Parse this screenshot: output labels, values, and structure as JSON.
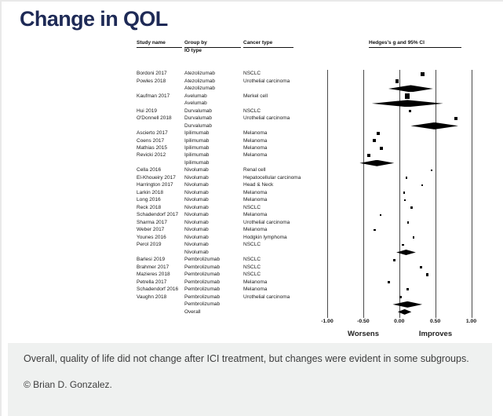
{
  "title": "Change in QOL",
  "table": {
    "headers": {
      "study": "Study name",
      "group_line1": "Group by",
      "group_line2": "IO type",
      "cancer": "Cancer type",
      "plot": "Hedges's g and 95% CI"
    }
  },
  "footer": {
    "summary": "Overall, quality of life did not change after ICI treatment, but changes were evident in some subgroups.",
    "credit": "© Brian D. Gonzalez."
  },
  "colors": {
    "title": "#1e2a56",
    "marker": "#000000",
    "gridline": "#4a4a4a",
    "footer_bg": "#eff1f0"
  },
  "chart_data": {
    "type": "forest",
    "title": "Change in QOL",
    "effect_label": "Hedges's g and 95% CI",
    "x_axis": {
      "xlim": [
        -1.0,
        1.0
      ],
      "ticks": [
        -1.0,
        -0.5,
        0.0,
        0.5,
        1.0
      ],
      "tick_labels": [
        "-1.00",
        "-0.50",
        "0.00",
        "0.50",
        "1.00"
      ],
      "left_annotation": "Worsens",
      "right_annotation": "Improves",
      "grid": true
    },
    "rows": [
      {
        "study": "Bordoni 2017",
        "group": "Atezolizumab",
        "cancer": "NSCLC",
        "marker": "square",
        "g": 0.32,
        "size": 5
      },
      {
        "study": "Powles 2018",
        "group": "Atezolizumab",
        "cancer": "Urothelial carcinoma",
        "marker": "square",
        "g": -0.03,
        "size": 4.5
      },
      {
        "study": "",
        "group": "Atezolizumab",
        "cancer": "",
        "marker": "diamond",
        "g": 0.16,
        "ci": [
          -0.15,
          0.47
        ],
        "size": 9
      },
      {
        "study": "Kaufman 2017",
        "group": "Avelumab",
        "cancer": "Merkel cell",
        "marker": "square",
        "g": 0.11,
        "size": 6.5
      },
      {
        "study": "",
        "group": "Avelumab",
        "cancer": "",
        "marker": "diamond",
        "g": 0.12,
        "ci": [
          -0.38,
          0.61
        ],
        "size": 9
      },
      {
        "study": "Hui 2019",
        "group": "Durvalumab",
        "cancer": "NSCLC",
        "marker": "square",
        "g": 0.15,
        "size": 3.5
      },
      {
        "study": "O'Donnell 2018",
        "group": "Durvalumab",
        "cancer": "Urothelial carcinoma",
        "marker": "square",
        "g": 0.79,
        "size": 4.5
      },
      {
        "study": "",
        "group": "Durvalumab",
        "cancer": "",
        "marker": "diamond",
        "g": 0.49,
        "ci": [
          0.16,
          0.82
        ],
        "size": 9
      },
      {
        "study": "Ascierto 2017",
        "group": "Ipilimumab",
        "cancer": "Melanoma",
        "marker": "square",
        "g": -0.29,
        "size": 3.5
      },
      {
        "study": "Coens 2017",
        "group": "Ipilimumab",
        "cancer": "Melanoma",
        "marker": "square",
        "g": -0.35,
        "size": 4
      },
      {
        "study": "Mathias 2015",
        "group": "Ipilimumab",
        "cancer": "Melanoma",
        "marker": "square",
        "g": -0.25,
        "size": 3.5
      },
      {
        "study": "Revicki 2012",
        "group": "Ipilimumab",
        "cancer": "Melanoma",
        "marker": "square",
        "g": -0.42,
        "size": 4
      },
      {
        "study": "",
        "group": "Ipilimumab",
        "cancer": "",
        "marker": "diamond",
        "g": -0.31,
        "ci": [
          -0.55,
          -0.07
        ],
        "size": 8
      },
      {
        "study": "Cella 2016",
        "group": "Nivolumab",
        "cancer": "Renal cell",
        "marker": "square",
        "g": 0.45,
        "size": 2.5
      },
      {
        "study": "El-Khoueiry 2017",
        "group": "Nivolumab",
        "cancer": "Hepatocellular carcinoma",
        "marker": "square",
        "g": 0.1,
        "size": 2.5
      },
      {
        "study": "Harrington 2017",
        "group": "Nivolumab",
        "cancer": "Head & Neck",
        "marker": "square",
        "g": 0.32,
        "size": 2.5
      },
      {
        "study": "Larkin 2018",
        "group": "Nivolumab",
        "cancer": "Melanoma",
        "marker": "square",
        "g": 0.07,
        "size": 2.5
      },
      {
        "study": "Long 2016",
        "group": "Nivolumab",
        "cancer": "Melanoma",
        "marker": "square",
        "g": 0.08,
        "size": 2.5
      },
      {
        "study": "Reck 2018",
        "group": "Nivolumab",
        "cancer": "NSCLC",
        "marker": "square",
        "g": 0.17,
        "size": 2.5
      },
      {
        "study": "Schadendorf 2017",
        "group": "Nivolumab",
        "cancer": "Melanoma",
        "marker": "square",
        "g": -0.26,
        "size": 2.5
      },
      {
        "study": "Sharma 2017",
        "group": "Nivolumab",
        "cancer": "Urothelial carcinoma",
        "marker": "square",
        "g": 0.12,
        "size": 2.5
      },
      {
        "study": "Weber 2017",
        "group": "Nivolumab",
        "cancer": "Melanoma",
        "marker": "square",
        "g": -0.34,
        "size": 2.5
      },
      {
        "study": "Younes 2016",
        "group": "Nivolumab",
        "cancer": "Hodgkin lymphoma",
        "marker": "square",
        "g": 0.2,
        "size": 2.5
      },
      {
        "study": "Perol 2019",
        "group": "Nivolumab",
        "cancer": "NSCLC",
        "marker": "square",
        "g": 0.05,
        "size": 2.5
      },
      {
        "study": "",
        "group": "Nivolumab",
        "cancer": "",
        "marker": "diamond",
        "g": 0.1,
        "ci": [
          -0.04,
          0.23
        ],
        "size": 7
      },
      {
        "study": "Barlesi 2019",
        "group": "Pembrolizumab",
        "cancer": "NSCLC",
        "marker": "square",
        "g": -0.07,
        "size": 3
      },
      {
        "study": "Brahmer 2017",
        "group": "Pembrolizumab",
        "cancer": "NSCLC",
        "marker": "square",
        "g": 0.3,
        "size": 3.5
      },
      {
        "study": "Mazieres 2018",
        "group": "Pembrolizumab",
        "cancer": "NSCLC",
        "marker": "square",
        "g": 0.39,
        "size": 3.5
      },
      {
        "study": "Petrella 2017",
        "group": "Pembrolizumab",
        "cancer": "Melanoma",
        "marker": "square",
        "g": -0.14,
        "size": 3
      },
      {
        "study": "Schadendorf 2016",
        "group": "Pembrolizumab",
        "cancer": "Melanoma",
        "marker": "square",
        "g": 0.12,
        "size": 3
      },
      {
        "study": "Vaughn 2018",
        "group": "Pembrolizumab",
        "cancer": "Urothelial carcinoma",
        "marker": "square",
        "g": 0.02,
        "size": 3
      },
      {
        "study": "",
        "group": "Pembrolizumab",
        "cancer": "",
        "marker": "diamond",
        "g": 0.12,
        "ci": [
          -0.09,
          0.32
        ],
        "size": 8
      },
      {
        "study": "",
        "group": "Overall",
        "cancer": "",
        "marker": "diamond",
        "g": 0.08,
        "ci": [
          -0.02,
          0.17
        ],
        "size": 7
      }
    ]
  }
}
